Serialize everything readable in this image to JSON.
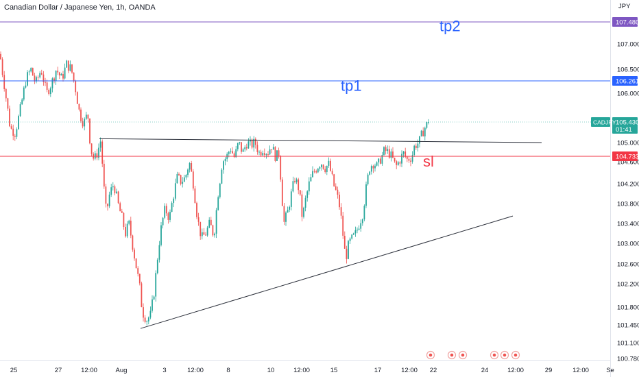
{
  "chart_data": {
    "type": "candlestick",
    "title": "Canadian Dollar / Japanese Yen, 1h, OANDA",
    "symbol": "CADJPY",
    "price_unit": "JPY",
    "countdown": "01:41",
    "current_price": 105.43,
    "ylim": [
      100.78,
      107.7
    ],
    "y_ticks": [
      "107.000",
      "106.500",
      "106.000",
      "105.000",
      "104.600",
      "104.200",
      "103.800",
      "103.400",
      "103.000",
      "102.600",
      "102.200",
      "101.800",
      "101.450",
      "101.100",
      "100.780"
    ],
    "x_ticks": [
      "25",
      "27",
      "12:00",
      "Aug",
      "3",
      "12:00",
      "8",
      "10",
      "12:00",
      "15",
      "17",
      "12:00",
      "22",
      "24",
      "12:00",
      "29",
      "12:00",
      "Se"
    ],
    "x_tick_positions": [
      20,
      85,
      130,
      177,
      240,
      285,
      333,
      395,
      440,
      487,
      551,
      597,
      632,
      707,
      752,
      800,
      847,
      890
    ],
    "colors": {
      "up": "#26a69a",
      "down": "#ef5350",
      "tp": "#2962ff",
      "sl": "#f23645",
      "tp2_line": "#7e57c2",
      "last": "#26a69a"
    },
    "levels": [
      {
        "name": "tp2",
        "value": 107.48,
        "label": "107.480",
        "color": "#7e57c2"
      },
      {
        "name": "tp1",
        "value": 106.261,
        "label": "106.261",
        "color": "#2962ff"
      },
      {
        "name": "sl",
        "value": 104.733,
        "label": "104.733",
        "color": "#f23645"
      }
    ],
    "annotations": [
      {
        "text": "tp2",
        "x": 641,
        "price": 107.28,
        "color": "#2962ff"
      },
      {
        "text": "tp1",
        "x": 497,
        "price": 106.05,
        "color": "#2962ff"
      },
      {
        "text": "sl",
        "x": 617,
        "price": 104.51,
        "color": "#f23645"
      }
    ],
    "trendlines": [
      {
        "name": "resistance",
        "x1": 145,
        "p1": 105.08,
        "x2": 790,
        "p2": 105.0
      },
      {
        "name": "support",
        "x1": 205,
        "p1": 101.38,
        "x2": 748,
        "p2": 103.55
      }
    ],
    "path_points": [
      [
        0,
        106.8
      ],
      [
        8,
        106.0
      ],
      [
        15,
        105.3
      ],
      [
        22,
        105.2
      ],
      [
        30,
        105.7
      ],
      [
        38,
        106.3
      ],
      [
        45,
        106.5
      ],
      [
        52,
        106.2
      ],
      [
        60,
        106.5
      ],
      [
        68,
        106.0
      ],
      [
        75,
        106.2
      ],
      [
        82,
        106.5
      ],
      [
        90,
        106.3
      ],
      [
        97,
        106.6
      ],
      [
        104,
        106.5
      ],
      [
        110,
        106.1
      ],
      [
        116,
        105.6
      ],
      [
        122,
        105.4
      ],
      [
        128,
        105.6
      ],
      [
        132,
        104.9
      ],
      [
        137,
        104.65
      ],
      [
        142,
        104.8
      ],
      [
        147,
        105.05
      ],
      [
        151,
        104.2
      ],
      [
        155,
        103.6
      ],
      [
        160,
        104.0
      ],
      [
        166,
        104.2
      ],
      [
        172,
        103.8
      ],
      [
        178,
        103.5
      ],
      [
        183,
        103.2
      ],
      [
        188,
        103.4
      ],
      [
        193,
        103.0
      ],
      [
        198,
        102.6
      ],
      [
        203,
        102.2
      ],
      [
        208,
        101.7
      ],
      [
        214,
        101.55
      ],
      [
        220,
        101.65
      ],
      [
        226,
        102.2
      ],
      [
        231,
        102.9
      ],
      [
        236,
        103.4
      ],
      [
        241,
        103.7
      ],
      [
        247,
        103.5
      ],
      [
        252,
        103.9
      ],
      [
        258,
        104.3
      ],
      [
        264,
        104.25
      ],
      [
        270,
        104.3
      ],
      [
        276,
        104.6
      ],
      [
        282,
        104.2
      ],
      [
        288,
        103.5
      ],
      [
        294,
        103.1
      ],
      [
        300,
        103.2
      ],
      [
        306,
        103.4
      ],
      [
        312,
        103.15
      ],
      [
        318,
        104.0
      ],
      [
        324,
        104.6
      ],
      [
        330,
        104.7
      ],
      [
        336,
        104.9
      ],
      [
        342,
        104.7
      ],
      [
        348,
        105.0
      ],
      [
        354,
        104.8
      ],
      [
        360,
        105.0
      ],
      [
        366,
        104.95
      ],
      [
        372,
        105.0
      ],
      [
        378,
        104.8
      ],
      [
        384,
        104.9
      ],
      [
        390,
        104.8
      ],
      [
        396,
        104.95
      ],
      [
        402,
        104.7
      ],
      [
        407,
        104.8
      ],
      [
        410,
        104.2
      ],
      [
        414,
        103.4
      ],
      [
        419,
        103.6
      ],
      [
        425,
        104.0
      ],
      [
        430,
        104.3
      ],
      [
        436,
        104.1
      ],
      [
        441,
        103.5
      ],
      [
        446,
        103.9
      ],
      [
        451,
        104.2
      ],
      [
        457,
        104.4
      ],
      [
        462,
        104.5
      ],
      [
        468,
        104.6
      ],
      [
        474,
        104.5
      ],
      [
        480,
        104.55
      ],
      [
        486,
        104.2
      ],
      [
        491,
        104.0
      ],
      [
        496,
        103.7
      ],
      [
        500,
        103.2
      ],
      [
        504,
        102.7
      ],
      [
        509,
        103.0
      ],
      [
        514,
        103.1
      ],
      [
        519,
        103.2
      ],
      [
        524,
        103.4
      ],
      [
        529,
        103.6
      ],
      [
        534,
        104.1
      ],
      [
        539,
        104.5
      ],
      [
        545,
        104.6
      ],
      [
        550,
        104.5
      ],
      [
        556,
        104.7
      ],
      [
        561,
        104.85
      ],
      [
        567,
        104.8
      ],
      [
        572,
        104.7
      ],
      [
        577,
        104.5
      ],
      [
        582,
        104.6
      ],
      [
        588,
        104.8
      ],
      [
        594,
        104.65
      ],
      [
        600,
        104.7
      ],
      [
        605,
        104.95
      ],
      [
        611,
        105.0
      ],
      [
        616,
        105.2
      ],
      [
        621,
        105.35
      ],
      [
        626,
        105.43
      ]
    ]
  }
}
